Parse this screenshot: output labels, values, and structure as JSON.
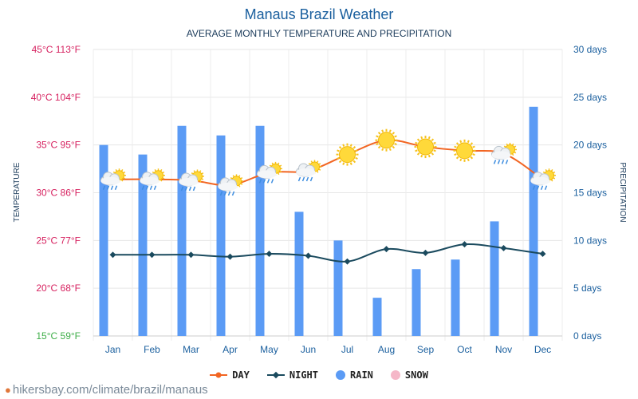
{
  "header": {
    "title": "Manaus Brazil Weather",
    "subtitle": "AVERAGE MONTHLY TEMPERATURE AND PRECIPITATION"
  },
  "footer": {
    "site": "hikersbay.com/climate/brazil/manaus",
    "icon": "location-pin-icon"
  },
  "legend": {
    "day": "DAY",
    "night": "NIGHT",
    "rain": "RAIN",
    "snow": "SNOW"
  },
  "colors": {
    "day": "#f26522",
    "night": "#1a4a5e",
    "rain": "#5b9bf5",
    "snow": "#f5b7c8",
    "left_axis": "#d6215f",
    "left_axis_bottom": "#3fae49",
    "right_axis": "#1a5f9e",
    "title": "#1a5f9e"
  },
  "chart_data": {
    "type": "bar",
    "title": "Manaus Brazil Weather",
    "subtitle": "AVERAGE MONTHLY TEMPERATURE AND PRECIPITATION",
    "categories": [
      "Jan",
      "Feb",
      "Mar",
      "Apr",
      "May",
      "Jun",
      "Jul",
      "Aug",
      "Sep",
      "Oct",
      "Nov",
      "Dec"
    ],
    "ylabel_left": "TEMPERATURE",
    "ylabel_right": "PRECIPITATION",
    "ylim_left": [
      15,
      45
    ],
    "ylim_right": [
      0,
      30
    ],
    "left_ticks": [
      "15°C 59°F",
      "20°C 68°F",
      "25°C 77°F",
      "30°C 86°F",
      "35°C 95°F",
      "40°C 104°F",
      "45°C 113°F"
    ],
    "right_ticks": [
      "0 days",
      "5 days",
      "10 days",
      "15 days",
      "20 days",
      "25 days",
      "30 days"
    ],
    "series": [
      {
        "name": "RAIN",
        "type": "bar",
        "axis": "right",
        "values": [
          20,
          19,
          22,
          21,
          22,
          13,
          10,
          4,
          7,
          8,
          12,
          24
        ]
      },
      {
        "name": "DAY",
        "type": "line",
        "axis": "left",
        "values": [
          31.4,
          31.4,
          31.3,
          30.8,
          32.1,
          32.3,
          34,
          35.5,
          34.8,
          34.4,
          34.1,
          31.4
        ]
      },
      {
        "name": "NIGHT",
        "type": "line",
        "axis": "left",
        "values": [
          23.5,
          23.5,
          23.5,
          23.3,
          23.6,
          23.4,
          22.8,
          24.1,
          23.7,
          24.6,
          24.2,
          23.6
        ]
      }
    ],
    "weather_icons": [
      "partly-cloudy-rain",
      "partly-cloudy-rain",
      "partly-cloudy-rain",
      "partly-cloudy-rain",
      "partly-cloudy-rain",
      "partly-cloudy-rain",
      "sunny",
      "sunny",
      "sunny",
      "sunny",
      "partly-cloudy-rain",
      "partly-cloudy-rain"
    ],
    "grid": true,
    "legend_position": "bottom"
  }
}
